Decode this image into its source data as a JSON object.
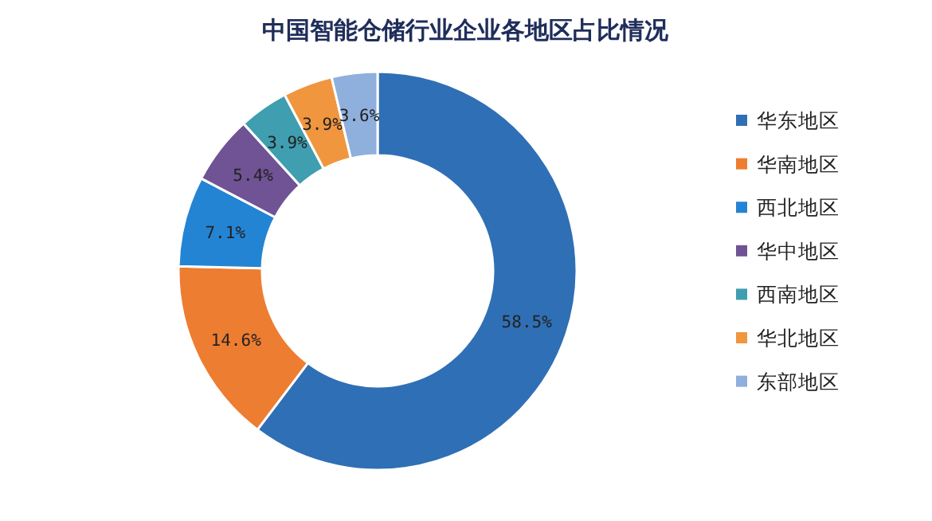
{
  "chart_data": {
    "type": "donut",
    "title": "中国智能仓储行业企业各地区占比情况",
    "categories": [
      "华东地区",
      "华南地区",
      "西北地区",
      "华中地区",
      "西南地区",
      "华北地区",
      "东部地区"
    ],
    "values": [
      58.5,
      14.6,
      7.1,
      5.4,
      3.9,
      3.9,
      3.6
    ],
    "value_labels": [
      "58.5%",
      "14.6%",
      "7.1%",
      "5.4%",
      "3.9%",
      "3.9%",
      "3.6%"
    ],
    "colors": [
      "#2f6fb5",
      "#ed7d31",
      "#2384d4",
      "#6f5394",
      "#3f9eb0",
      "#f0963f",
      "#8fafdc"
    ],
    "legend": "right"
  }
}
